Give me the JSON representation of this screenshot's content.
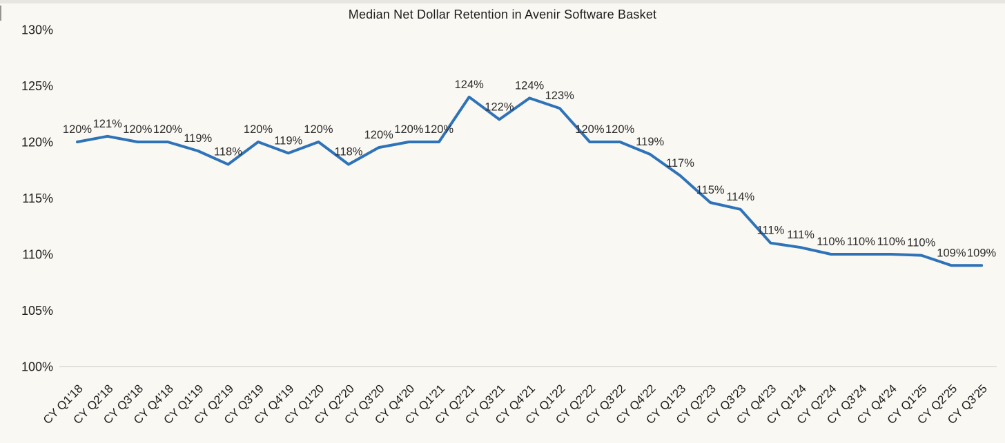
{
  "chart_data": {
    "type": "line",
    "title": "Median Net Dollar Retention in Avenir Software Basket",
    "series_name": "Median Net Dollar Retention",
    "categories": [
      "CY Q1'18",
      "CY Q2'18",
      "CY Q3'18",
      "CY Q4'18",
      "CY Q1'19",
      "CY Q2'19",
      "CY Q3'19",
      "CY Q4'19",
      "CY Q1'20",
      "CY Q2'20",
      "CY Q3'20",
      "CY Q4'20",
      "CY Q1'21",
      "CY Q2'21",
      "CY Q3'21",
      "CY Q4'21",
      "CY Q1'22",
      "CY Q2'22",
      "CY Q3'22",
      "CY Q4'22",
      "CY Q1'23",
      "CY Q2'23",
      "CY Q3'23",
      "CY Q4'23",
      "CY Q1'24",
      "CY Q2'24",
      "CY Q3'24",
      "CY Q4'24",
      "CY Q1'25",
      "CY Q2'25",
      "CY Q3'25"
    ],
    "values": [
      120,
      120.5,
      120,
      120,
      119.2,
      118,
      120,
      119,
      120,
      118,
      119.5,
      120,
      120,
      124,
      122,
      123.9,
      123,
      120,
      120,
      118.9,
      117,
      114.6,
      114,
      111,
      110.6,
      110,
      110,
      110,
      109.9,
      109,
      109
    ],
    "point_labels": [
      "120%",
      "121%",
      "120%",
      "120%",
      "119%",
      "118%",
      "120%",
      "119%",
      "120%",
      "118%",
      "120%",
      "120%",
      "120%",
      "124%",
      "122%",
      "124%",
      "123%",
      "120%",
      "120%",
      "119%",
      "117%",
      "115%",
      "114%",
      "111%",
      "111%",
      "110%",
      "110%",
      "110%",
      "110%",
      "109%",
      "109%"
    ],
    "xlabel": "",
    "ylabel": "",
    "ylim": [
      100,
      130
    ],
    "yticks": [
      100,
      105,
      110,
      115,
      120,
      125,
      130
    ],
    "ytick_labels": [
      "100%",
      "105%",
      "110%",
      "115%",
      "120%",
      "125%",
      "130%"
    ],
    "grid": "baseline-only",
    "legend": "none",
    "colors": {
      "line": "#2E73B9",
      "background": "#FAF8F2",
      "top_strip": "#E8E6E1",
      "edge_mark": "#6B6B66",
      "text": "#1C1C1C",
      "data_label": "#2B2B2B",
      "baseline": "#D9D7CF"
    }
  }
}
